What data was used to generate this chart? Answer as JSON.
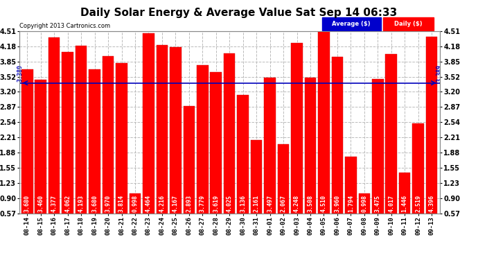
{
  "title": "Daily Solar Energy & Average Value Sat Sep 14 06:33",
  "copyright": "Copyright 2013 Cartronics.com",
  "categories": [
    "08-14",
    "08-15",
    "08-16",
    "08-17",
    "08-18",
    "08-19",
    "08-20",
    "08-21",
    "08-22",
    "08-23",
    "08-24",
    "08-25",
    "08-26",
    "08-27",
    "08-28",
    "08-29",
    "08-30",
    "08-31",
    "09-01",
    "09-02",
    "09-03",
    "09-04",
    "09-05",
    "09-06",
    "09-07",
    "09-08",
    "09-09",
    "09-10",
    "09-11",
    "09-12",
    "09-13"
  ],
  "values": [
    3.68,
    3.46,
    4.377,
    4.062,
    4.193,
    3.68,
    3.97,
    3.814,
    0.998,
    4.464,
    4.216,
    4.167,
    2.893,
    3.779,
    3.619,
    4.025,
    3.136,
    2.161,
    3.497,
    2.067,
    4.248,
    3.508,
    4.51,
    3.96,
    1.794,
    0.998,
    3.475,
    4.017,
    1.446,
    2.519,
    4.396
  ],
  "average": 3.389,
  "bar_color": "#ff0000",
  "avg_line_color": "#0000bb",
  "background_color": "#ffffff",
  "plot_bg_color": "#ffffff",
  "grid_color": "#bbbbbb",
  "yticks": [
    0.57,
    0.9,
    1.23,
    1.55,
    1.88,
    2.21,
    2.54,
    2.87,
    3.2,
    3.52,
    3.85,
    4.18,
    4.51
  ],
  "ymin": 0.57,
  "ymax": 4.51,
  "legend_avg_bg": "#0000cc",
  "legend_daily_bg": "#ff0000",
  "legend_text_color": "#ffffff",
  "title_fontsize": 11,
  "tick_fontsize": 6.5,
  "value_fontsize": 6,
  "avg_label": "3.389",
  "bar_width": 0.85
}
